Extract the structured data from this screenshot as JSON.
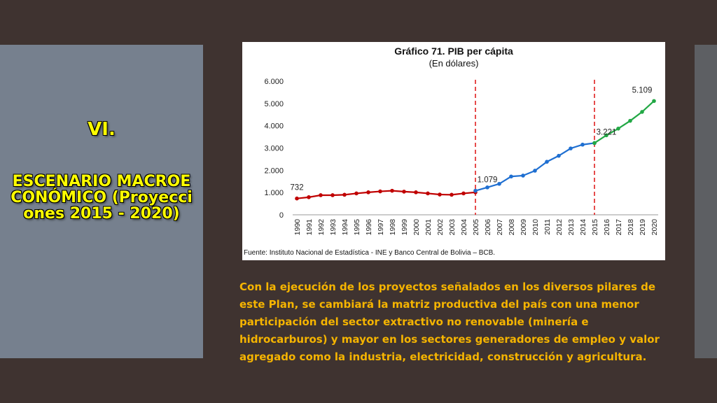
{
  "slide": {
    "title_number": "VI.",
    "title_text": "ESCENARIO MACROECONÓMICO (Proyecciones 2015 - 2020)",
    "body_text": "Con la ejecución de los proyectos señalados en los diversos pilares de este Plan, se cambiará la matriz productiva del país con una menor participación del sector extractivo no renovable (minería e hidrocarburos) y mayor en los sectores generadores de empleo y valor agregado como la industria, electricidad, construcción y agricultura.",
    "colors": {
      "background": "#3f3330",
      "panel": "#76808e",
      "title": "#ffff00",
      "body_text": "#f5b400"
    }
  },
  "chart_data": {
    "type": "line",
    "title": "Gráfico 71. PIB per cápita",
    "subtitle": "(En dólares)",
    "source": "Fuente: Instituto Nacional de Estadística - INE y Banco Central de Bolivia – BCB.",
    "xlabel": "",
    "ylabel": "",
    "ylim": [
      0,
      6000
    ],
    "y_ticks": [
      "0",
      "1.000",
      "2.000",
      "3.000",
      "4.000",
      "5.000",
      "6.000"
    ],
    "y_tick_values": [
      0,
      1000,
      2000,
      3000,
      4000,
      5000,
      6000
    ],
    "x": [
      "1990",
      "1991",
      "1992",
      "1993",
      "1994",
      "1995",
      "1996",
      "1997",
      "1998",
      "1999",
      "2000",
      "2001",
      "2002",
      "2003",
      "2004",
      "2005",
      "2006",
      "2007",
      "2008",
      "2009",
      "2010",
      "2011",
      "2012",
      "2013",
      "2014",
      "2015",
      "2016",
      "2017",
      "2018",
      "2019",
      "2020"
    ],
    "series": [
      {
        "color": "#c00000",
        "x": [
          "1990",
          "1991",
          "1992",
          "1993",
          "1994",
          "1995",
          "1996",
          "1997",
          "1998",
          "1999",
          "2000",
          "2001",
          "2002",
          "2003",
          "2004",
          "2005"
        ],
        "values": [
          732,
          790,
          880,
          880,
          900,
          960,
          1010,
          1050,
          1080,
          1040,
          1010,
          960,
          910,
          900,
          960,
          1010
        ]
      },
      {
        "color": "#1f6fd1",
        "x": [
          "2005",
          "2006",
          "2007",
          "2008",
          "2009",
          "2010",
          "2011",
          "2012",
          "2013",
          "2014",
          "2015"
        ],
        "values": [
          1079,
          1230,
          1390,
          1720,
          1760,
          1980,
          2380,
          2650,
          2980,
          3150,
          3221
        ]
      },
      {
        "color": "#22a845",
        "x": [
          "2015",
          "2016",
          "2017",
          "2018",
          "2019",
          "2020"
        ],
        "values": [
          3221,
          3570,
          3870,
          4220,
          4620,
          5109
        ]
      }
    ],
    "annotations": [
      {
        "x": "1990",
        "value": 732,
        "label": "732"
      },
      {
        "x": "2006",
        "value": 1079,
        "label": "1.079"
      },
      {
        "x": "2016",
        "value": 3221,
        "label": "3.221"
      },
      {
        "x": "2019",
        "value": 5109,
        "label": "5.109"
      }
    ],
    "vertical_dashed_lines": {
      "x": [
        "2005",
        "2015"
      ],
      "color": "#e02020"
    },
    "grid": false,
    "legend": "none"
  }
}
